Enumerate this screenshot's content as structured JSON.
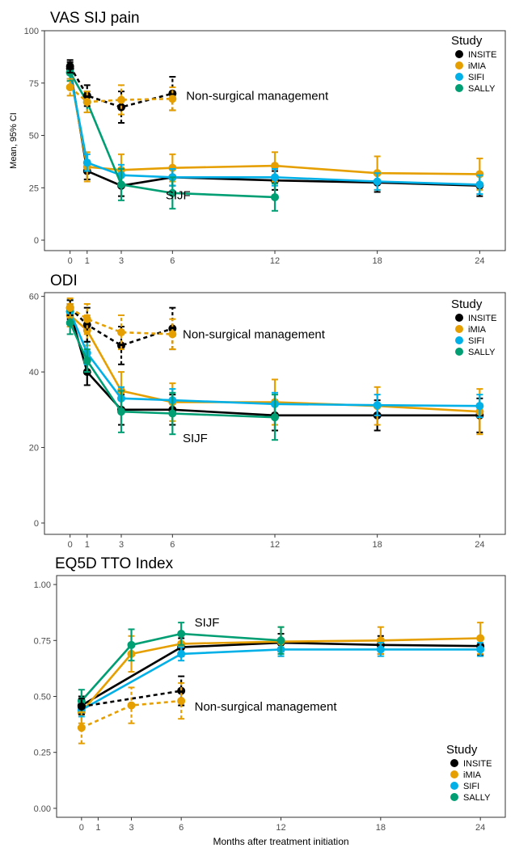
{
  "colors": {
    "INSITE": "#000000",
    "iMIA": "#E69F00",
    "SIFI": "#00B0E6",
    "SALLY": "#009E73",
    "panel_border": "#333333",
    "tick_text": "#4d4d4d"
  },
  "legend": {
    "title": "Study",
    "items": [
      "INSITE",
      "iMIA",
      "SIFI",
      "SALLY"
    ]
  },
  "chart_data": [
    {
      "type": "line",
      "title": "VAS SIJ pain",
      "ylabel": "Mean, 95% CI",
      "xlabel": "",
      "xlim": [
        -1.5,
        25.5
      ],
      "ylim": [
        -5,
        100
      ],
      "xticks": [
        0,
        1,
        3,
        6,
        12,
        18,
        24
      ],
      "yticks": [
        0,
        25,
        50,
        75,
        100
      ],
      "legend_position": "top-right",
      "grid": false,
      "annotations": [
        {
          "text": "Non-surgical management",
          "x": 6.8,
          "y": 69
        },
        {
          "text": "SIJF",
          "x": 5.6,
          "y": 21.5
        }
      ],
      "series": [
        {
          "name": "INSITE",
          "group": "SIJF",
          "dashed": false,
          "points": [
            [
              0,
              82,
              79,
              85
            ],
            [
              1,
              33,
              29,
              37
            ],
            [
              3,
              26,
              21,
              31
            ],
            [
              6,
              30,
              26,
              34
            ],
            [
              12,
              28.5,
              24,
              33
            ],
            [
              18,
              27.5,
              23,
              32
            ],
            [
              24,
              26,
              21,
              31
            ]
          ]
        },
        {
          "name": "iMIA",
          "group": "SIJF",
          "dashed": false,
          "points": [
            [
              0,
              80,
              76,
              84
            ],
            [
              1,
              35,
              28,
              42
            ],
            [
              3,
              33.5,
              27,
              41
            ],
            [
              6,
              34.5,
              28,
              41
            ],
            [
              12,
              35.5,
              28,
              42
            ],
            [
              18,
              32,
              24,
              40
            ],
            [
              24,
              31.5,
              24,
              39
            ]
          ]
        },
        {
          "name": "SIFI",
          "group": "SIJF",
          "dashed": false,
          "points": [
            [
              0,
              80,
              77,
              83
            ],
            [
              1,
              37,
              33,
              41
            ],
            [
              3,
              31,
              26,
              36
            ],
            [
              6,
              30,
              26,
              34
            ],
            [
              12,
              30,
              26,
              34
            ],
            [
              18,
              28,
              24,
              32
            ],
            [
              24,
              26.5,
              22,
              31
            ]
          ]
        },
        {
          "name": "SALLY",
          "group": "SIJF",
          "dashed": false,
          "points": [
            [
              0,
              80,
              76,
              84
            ],
            [
              1,
              66,
              61,
              71
            ],
            [
              3,
              26.5,
              19,
              34
            ],
            [
              6,
              22.5,
              15,
              30
            ],
            [
              12,
              20.5,
              14,
              27
            ]
          ]
        },
        {
          "name": "INSITE",
          "group": "Non-surgical management",
          "dashed": true,
          "points": [
            [
              0,
              83,
              80,
              86
            ],
            [
              1,
              69,
              64,
              74
            ],
            [
              3,
              63.5,
              56,
              71
            ],
            [
              6,
              70,
              62,
              78
            ]
          ]
        },
        {
          "name": "iMIA",
          "group": "Non-surgical management",
          "dashed": true,
          "points": [
            [
              0,
              73,
              69,
              77
            ],
            [
              1,
              66,
              61,
              71
            ],
            [
              3,
              67,
              60,
              74
            ],
            [
              6,
              67.5,
              62,
              73
            ]
          ]
        }
      ]
    },
    {
      "type": "line",
      "title": "ODI",
      "ylabel": "",
      "xlabel": "",
      "xlim": [
        -1.5,
        25.5
      ],
      "ylim": [
        -3,
        61
      ],
      "xticks": [
        0,
        1,
        3,
        6,
        12,
        18,
        24
      ],
      "yticks": [
        0,
        20,
        40,
        60
      ],
      "legend_position": "top-right",
      "grid": false,
      "annotations": [
        {
          "text": "Non-surgical management",
          "x": 6.6,
          "y": 50
        },
        {
          "text": "SIJF",
          "x": 6.6,
          "y": 22.5
        }
      ],
      "series": [
        {
          "name": "INSITE",
          "group": "SIJF",
          "dashed": false,
          "points": [
            [
              0,
              56,
              54,
              58
            ],
            [
              1,
              40,
              36.5,
              43.5
            ],
            [
              3,
              30,
              26,
              34
            ],
            [
              6,
              30,
              26,
              34
            ],
            [
              12,
              28.5,
              24.5,
              32.5
            ],
            [
              18,
              28.5,
              24.5,
              32.5
            ],
            [
              24,
              28.5,
              24,
              33
            ]
          ]
        },
        {
          "name": "iMIA",
          "group": "SIJF",
          "dashed": false,
          "points": [
            [
              0,
              55,
              52,
              58
            ],
            [
              1,
              51,
              47,
              55
            ],
            [
              3,
              35,
              30,
              40
            ],
            [
              6,
              32,
              27,
              37
            ],
            [
              12,
              32,
              26,
              38
            ],
            [
              18,
              31,
              26,
              36
            ],
            [
              24,
              29.5,
              23.5,
              35.5
            ]
          ]
        },
        {
          "name": "SIFI",
          "group": "SIJF",
          "dashed": false,
          "points": [
            [
              0,
              56,
              53,
              59
            ],
            [
              1,
              45,
              42,
              48
            ],
            [
              3,
              33,
              30,
              36
            ],
            [
              6,
              32.5,
              29.5,
              35.5
            ],
            [
              12,
              31.5,
              28.5,
              34.5
            ],
            [
              18,
              31.2,
              28.5,
              34
            ],
            [
              24,
              31,
              28,
              34
            ]
          ]
        },
        {
          "name": "SALLY",
          "group": "SIJF",
          "dashed": false,
          "points": [
            [
              0,
              53,
              50,
              56
            ],
            [
              1,
              43,
              40,
              46
            ],
            [
              3,
              29.5,
              24,
              35
            ],
            [
              6,
              29,
              23.5,
              34.5
            ],
            [
              12,
              28,
              22,
              34
            ]
          ]
        },
        {
          "name": "INSITE",
          "group": "Non-surgical management",
          "dashed": true,
          "points": [
            [
              0,
              57,
              55,
              59
            ],
            [
              1,
              52.5,
              48,
              57
            ],
            [
              3,
              47,
              42,
              52
            ],
            [
              6,
              51.5,
              46,
              57
            ]
          ]
        },
        {
          "name": "iMIA",
          "group": "Non-surgical management",
          "dashed": true,
          "points": [
            [
              0,
              57,
              54.5,
              59.5
            ],
            [
              1,
              54,
              50,
              58
            ],
            [
              3,
              50.5,
              46,
              55
            ],
            [
              6,
              50,
              46,
              54
            ]
          ]
        }
      ]
    },
    {
      "type": "line",
      "title": "EQ5D TTO Index",
      "ylabel": "",
      "xlabel": "Months after treatment initiation",
      "xlim": [
        -1.5,
        25.5
      ],
      "ylim": [
        -0.04,
        1.04
      ],
      "xticks": [
        0,
        1,
        3,
        6,
        12,
        18,
        24
      ],
      "yticks": [
        0.0,
        0.25,
        0.5,
        0.75,
        1.0
      ],
      "ytick_labels": [
        "0.00",
        "0.25",
        "0.50",
        "0.75",
        "1.00"
      ],
      "legend_position": "bottom-right",
      "grid": false,
      "annotations": [
        {
          "text": "SIJF",
          "x": 6.8,
          "y": 0.83
        },
        {
          "text": "Non-surgical management",
          "x": 6.8,
          "y": 0.455
        }
      ],
      "series": [
        {
          "name": "INSITE",
          "group": "SIJF",
          "dashed": false,
          "points": [
            [
              0,
              0.46,
              0.42,
              0.5
            ],
            [
              6,
              0.72,
              0.68,
              0.76
            ],
            [
              12,
              0.74,
              0.7,
              0.78
            ],
            [
              18,
              0.73,
              0.69,
              0.77
            ],
            [
              24,
              0.725,
              0.685,
              0.765
            ]
          ]
        },
        {
          "name": "iMIA",
          "group": "SIJF",
          "dashed": false,
          "points": [
            [
              0,
              0.43,
              0.38,
              0.48
            ],
            [
              3,
              0.69,
              0.61,
              0.77
            ],
            [
              6,
              0.735,
              0.69,
              0.78
            ],
            [
              12,
              0.745,
              0.68,
              0.81
            ],
            [
              18,
              0.75,
              0.69,
              0.81
            ],
            [
              24,
              0.76,
              0.69,
              0.83
            ]
          ]
        },
        {
          "name": "SIFI",
          "group": "SIJF",
          "dashed": false,
          "points": [
            [
              0,
              0.44,
              0.41,
              0.47
            ],
            [
              6,
              0.69,
              0.66,
              0.72
            ],
            [
              12,
              0.71,
              0.68,
              0.74
            ],
            [
              18,
              0.71,
              0.68,
              0.74
            ],
            [
              24,
              0.71,
              0.68,
              0.74
            ]
          ]
        },
        {
          "name": "SALLY",
          "group": "SIJF",
          "dashed": false,
          "points": [
            [
              0,
              0.48,
              0.43,
              0.53
            ],
            [
              3,
              0.73,
              0.66,
              0.8
            ],
            [
              6,
              0.78,
              0.73,
              0.83
            ],
            [
              12,
              0.75,
              0.69,
              0.81
            ]
          ]
        },
        {
          "name": "INSITE",
          "group": "Non-surgical management",
          "dashed": true,
          "points": [
            [
              0,
              0.455,
              0.42,
              0.49
            ],
            [
              6,
              0.525,
              0.46,
              0.59
            ]
          ]
        },
        {
          "name": "iMIA",
          "group": "Non-surgical management",
          "dashed": true,
          "points": [
            [
              0,
              0.36,
              0.29,
              0.43
            ],
            [
              3,
              0.46,
              0.38,
              0.54
            ],
            [
              6,
              0.48,
              0.4,
              0.56
            ]
          ]
        }
      ]
    }
  ]
}
